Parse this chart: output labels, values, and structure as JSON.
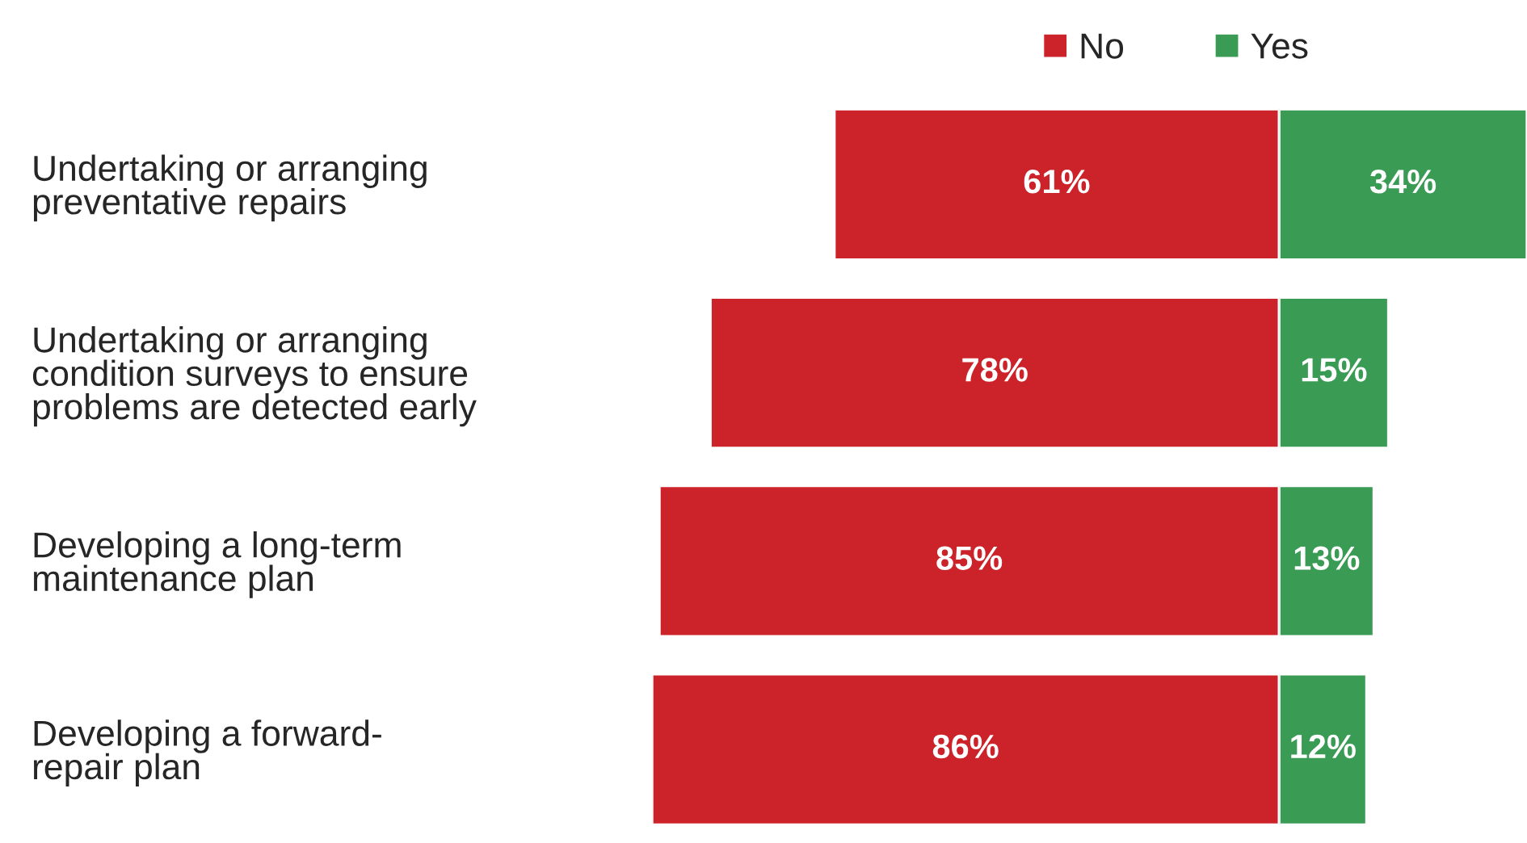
{
  "chart_data": [
    {
      "type": "bar",
      "orientation": "horizontal",
      "categories": [
        "Undertaking or arranging\npreventative repairs",
        "Undertaking or arranging\ncondition surveys to ensure\nproblems are detected early",
        "Developing a long-term\nmaintenance plan",
        "Developing a forward-\nrepair plan"
      ],
      "series": [
        {
          "name": "No",
          "color": "#cc2229",
          "values": [
            61,
            78,
            85,
            86
          ],
          "value_labels": [
            "61%",
            "78%",
            "85%",
            "86%"
          ]
        }
      ],
      "xlim": [
        86,
        0
      ],
      "tick_labels": "y",
      "legend": "top"
    },
    {
      "type": "bar",
      "orientation": "horizontal",
      "categories": [
        null,
        null,
        null,
        null
      ],
      "series": [
        {
          "name": "Yes",
          "color": "#3a9b55",
          "values": [
            34,
            15,
            13,
            12
          ],
          "value_labels": [
            "34%",
            "15%",
            "13%",
            "12%"
          ]
        }
      ],
      "xlim": [
        0,
        34
      ],
      "tick_labels": false,
      "legend": "top"
    }
  ]
}
